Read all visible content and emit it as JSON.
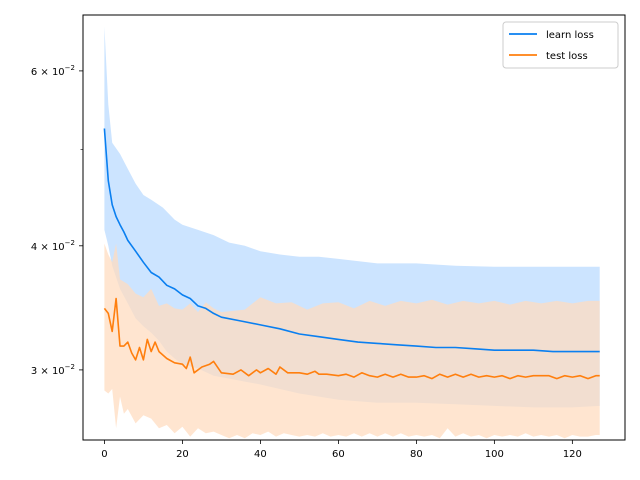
{
  "chart_data": {
    "type": "line",
    "title": "",
    "xlabel": "",
    "ylabel": "",
    "yscale": "log",
    "xlim": [
      -5.5,
      133.5
    ],
    "ylim": [
      0.0255,
      0.0683
    ],
    "x_ticks": [
      0,
      20,
      40,
      60,
      80,
      100,
      120
    ],
    "x_tick_labels": [
      "0",
      "20",
      "40",
      "60",
      "80",
      "100",
      "120"
    ],
    "y_ticks": [
      0.03,
      0.04,
      0.06
    ],
    "y_tick_labels": [
      {
        "mantissa": "3",
        "base": "10",
        "exp": "−2"
      },
      {
        "mantissa": "4",
        "base": "10",
        "exp": "−2"
      },
      {
        "mantissa": "6",
        "base": "10",
        "exp": "−2"
      }
    ],
    "y_minor_ticks": [
      0.05
    ],
    "legend_position": "top-right",
    "grid": false,
    "series": [
      {
        "name": "learn loss",
        "color": "#0a7ff0",
        "band_color": "#cce4ff",
        "mean": [
          [
            0,
            0.0525
          ],
          [
            1,
            0.0465
          ],
          [
            2,
            0.044
          ],
          [
            3,
            0.0428
          ],
          [
            4,
            0.042
          ],
          [
            5,
            0.0413
          ],
          [
            6,
            0.0405
          ],
          [
            8,
            0.0395
          ],
          [
            10,
            0.0385
          ],
          [
            12,
            0.0376
          ],
          [
            14,
            0.0372
          ],
          [
            16,
            0.0365
          ],
          [
            18,
            0.0362
          ],
          [
            20,
            0.0357
          ],
          [
            22,
            0.0354
          ],
          [
            24,
            0.0348
          ],
          [
            26,
            0.0346
          ],
          [
            28,
            0.0342
          ],
          [
            30,
            0.0339
          ],
          [
            35,
            0.0336
          ],
          [
            40,
            0.0333
          ],
          [
            45,
            0.033
          ],
          [
            50,
            0.0326
          ],
          [
            55,
            0.0324
          ],
          [
            60,
            0.0322
          ],
          [
            65,
            0.032
          ],
          [
            70,
            0.0319
          ],
          [
            75,
            0.0318
          ],
          [
            80,
            0.0317
          ],
          [
            85,
            0.0316
          ],
          [
            90,
            0.0316
          ],
          [
            95,
            0.0315
          ],
          [
            100,
            0.0314
          ],
          [
            105,
            0.0314
          ],
          [
            110,
            0.0314
          ],
          [
            115,
            0.0313
          ],
          [
            120,
            0.0313
          ],
          [
            127,
            0.0313
          ]
        ],
        "upper": [
          [
            0,
            0.0665
          ],
          [
            1,
            0.0555
          ],
          [
            2,
            0.0508
          ],
          [
            4,
            0.0495
          ],
          [
            6,
            0.0478
          ],
          [
            8,
            0.0462
          ],
          [
            10,
            0.045
          ],
          [
            12,
            0.0445
          ],
          [
            15,
            0.0437
          ],
          [
            18,
            0.0425
          ],
          [
            20,
            0.042
          ],
          [
            24,
            0.0415
          ],
          [
            28,
            0.041
          ],
          [
            32,
            0.0403
          ],
          [
            36,
            0.04
          ],
          [
            40,
            0.0395
          ],
          [
            45,
            0.0392
          ],
          [
            50,
            0.039
          ],
          [
            55,
            0.039
          ],
          [
            60,
            0.0388
          ],
          [
            70,
            0.0384
          ],
          [
            80,
            0.0384
          ],
          [
            90,
            0.0382
          ],
          [
            100,
            0.0381
          ],
          [
            110,
            0.0381
          ],
          [
            120,
            0.0381
          ],
          [
            127,
            0.0381
          ]
        ],
        "lower": [
          [
            0,
            0.0415
          ],
          [
            1,
            0.04
          ],
          [
            2,
            0.0382
          ],
          [
            4,
            0.0362
          ],
          [
            6,
            0.035
          ],
          [
            8,
            0.0338
          ],
          [
            10,
            0.0332
          ],
          [
            12,
            0.0327
          ],
          [
            14,
            0.0321
          ],
          [
            16,
            0.0313
          ],
          [
            18,
            0.0308
          ],
          [
            20,
            0.0304
          ],
          [
            24,
            0.0301
          ],
          [
            28,
            0.0296
          ],
          [
            32,
            0.0294
          ],
          [
            36,
            0.0292
          ],
          [
            40,
            0.029
          ],
          [
            45,
            0.0287
          ],
          [
            50,
            0.0284
          ],
          [
            55,
            0.0282
          ],
          [
            60,
            0.028
          ],
          [
            70,
            0.0278
          ],
          [
            80,
            0.0278
          ],
          [
            90,
            0.0277
          ],
          [
            100,
            0.0276
          ],
          [
            110,
            0.0275
          ],
          [
            120,
            0.0275
          ],
          [
            127,
            0.0276
          ]
        ]
      },
      {
        "name": "test loss",
        "color": "#ff7f0e",
        "band_color": "#ffdcc0",
        "mean": [
          [
            0,
            0.0346
          ],
          [
            1,
            0.0342
          ],
          [
            2,
            0.0328
          ],
          [
            3,
            0.0354
          ],
          [
            4,
            0.0317
          ],
          [
            5,
            0.0317
          ],
          [
            6,
            0.032
          ],
          [
            7,
            0.0312
          ],
          [
            8,
            0.0307
          ],
          [
            9,
            0.0316
          ],
          [
            10,
            0.0307
          ],
          [
            11,
            0.0322
          ],
          [
            12,
            0.0313
          ],
          [
            13,
            0.032
          ],
          [
            14,
            0.0313
          ],
          [
            16,
            0.0308
          ],
          [
            18,
            0.0305
          ],
          [
            20,
            0.0304
          ],
          [
            21,
            0.0301
          ],
          [
            22,
            0.0309
          ],
          [
            23,
            0.0298
          ],
          [
            25,
            0.0302
          ],
          [
            27,
            0.0304
          ],
          [
            28,
            0.0306
          ],
          [
            30,
            0.0298
          ],
          [
            33,
            0.0297
          ],
          [
            35,
            0.03
          ],
          [
            37,
            0.0296
          ],
          [
            39,
            0.03
          ],
          [
            40,
            0.0298
          ],
          [
            42,
            0.0301
          ],
          [
            44,
            0.0297
          ],
          [
            45,
            0.0302
          ],
          [
            47,
            0.0298
          ],
          [
            50,
            0.0298
          ],
          [
            52,
            0.0297
          ],
          [
            54,
            0.0299
          ],
          [
            55,
            0.0297
          ],
          [
            57,
            0.0297
          ],
          [
            60,
            0.0296
          ],
          [
            62,
            0.0297
          ],
          [
            64,
            0.0295
          ],
          [
            66,
            0.0298
          ],
          [
            68,
            0.0296
          ],
          [
            70,
            0.0295
          ],
          [
            72,
            0.0297
          ],
          [
            74,
            0.0295
          ],
          [
            76,
            0.0297
          ],
          [
            78,
            0.0295
          ],
          [
            80,
            0.0295
          ],
          [
            82,
            0.0296
          ],
          [
            84,
            0.0294
          ],
          [
            86,
            0.0297
          ],
          [
            88,
            0.0295
          ],
          [
            90,
            0.0297
          ],
          [
            92,
            0.0295
          ],
          [
            94,
            0.0297
          ],
          [
            96,
            0.0295
          ],
          [
            98,
            0.0296
          ],
          [
            100,
            0.0295
          ],
          [
            102,
            0.0296
          ],
          [
            104,
            0.0294
          ],
          [
            106,
            0.0296
          ],
          [
            108,
            0.0295
          ],
          [
            110,
            0.0296
          ],
          [
            112,
            0.0296
          ],
          [
            114,
            0.0296
          ],
          [
            116,
            0.0294
          ],
          [
            118,
            0.0296
          ],
          [
            120,
            0.0295
          ],
          [
            122,
            0.0296
          ],
          [
            124,
            0.0294
          ],
          [
            126,
            0.0296
          ],
          [
            127,
            0.0296
          ]
        ],
        "upper": [
          [
            0,
            0.0402
          ],
          [
            1,
            0.0392
          ],
          [
            2,
            0.0385
          ],
          [
            3,
            0.0402
          ],
          [
            4,
            0.037
          ],
          [
            6,
            0.0366
          ],
          [
            8,
            0.0358
          ],
          [
            10,
            0.0355
          ],
          [
            12,
            0.0362
          ],
          [
            14,
            0.0348
          ],
          [
            16,
            0.035
          ],
          [
            18,
            0.0346
          ],
          [
            20,
            0.0345
          ],
          [
            22,
            0.035
          ],
          [
            24,
            0.0343
          ],
          [
            26,
            0.0351
          ],
          [
            28,
            0.0346
          ],
          [
            30,
            0.0343
          ],
          [
            33,
            0.0344
          ],
          [
            36,
            0.0345
          ],
          [
            40,
            0.0355
          ],
          [
            44,
            0.035
          ],
          [
            48,
            0.0351
          ],
          [
            52,
            0.0345
          ],
          [
            56,
            0.035
          ],
          [
            60,
            0.0351
          ],
          [
            64,
            0.0346
          ],
          [
            68,
            0.0352
          ],
          [
            72,
            0.0348
          ],
          [
            76,
            0.0352
          ],
          [
            80,
            0.035
          ],
          [
            84,
            0.0353
          ],
          [
            88,
            0.0349
          ],
          [
            92,
            0.0352
          ],
          [
            96,
            0.035
          ],
          [
            100,
            0.0352
          ],
          [
            104,
            0.0349
          ],
          [
            108,
            0.0352
          ],
          [
            112,
            0.035
          ],
          [
            116,
            0.0352
          ],
          [
            120,
            0.035
          ],
          [
            124,
            0.0352
          ],
          [
            127,
            0.0352
          ]
        ],
        "lower": [
          [
            0,
            0.0286
          ],
          [
            1,
            0.0284
          ],
          [
            2,
            0.0287
          ],
          [
            3,
            0.0262
          ],
          [
            4,
            0.0282
          ],
          [
            5,
            0.0271
          ],
          [
            6,
            0.0274
          ],
          [
            8,
            0.0265
          ],
          [
            10,
            0.027
          ],
          [
            12,
            0.0268
          ],
          [
            14,
            0.0262
          ],
          [
            16,
            0.0264
          ],
          [
            18,
            0.0259
          ],
          [
            20,
            0.0263
          ],
          [
            22,
            0.0257
          ],
          [
            24,
            0.0262
          ],
          [
            26,
            0.0259
          ],
          [
            28,
            0.026
          ],
          [
            30,
            0.0258
          ],
          [
            32,
            0.0256
          ],
          [
            34,
            0.0258
          ],
          [
            36,
            0.0256
          ],
          [
            38,
            0.0259
          ],
          [
            40,
            0.0258
          ],
          [
            42,
            0.026
          ],
          [
            44,
            0.0257
          ],
          [
            46,
            0.0259
          ],
          [
            48,
            0.0258
          ],
          [
            50,
            0.0257
          ],
          [
            52,
            0.0258
          ],
          [
            54,
            0.0257
          ],
          [
            56,
            0.0259
          ],
          [
            58,
            0.0257
          ],
          [
            60,
            0.0258
          ],
          [
            62,
            0.0257
          ],
          [
            64,
            0.0259
          ],
          [
            66,
            0.0257
          ],
          [
            68,
            0.0259
          ],
          [
            70,
            0.0257
          ],
          [
            72,
            0.0259
          ],
          [
            74,
            0.0257
          ],
          [
            76,
            0.0259
          ],
          [
            78,
            0.0257
          ],
          [
            80,
            0.0258
          ],
          [
            82,
            0.0257
          ],
          [
            84,
            0.0258
          ],
          [
            86,
            0.0256
          ],
          [
            88,
            0.0262
          ],
          [
            90,
            0.0257
          ],
          [
            92,
            0.0259
          ],
          [
            94,
            0.0257
          ],
          [
            96,
            0.0258
          ],
          [
            98,
            0.0256
          ],
          [
            100,
            0.0258
          ],
          [
            102,
            0.0257
          ],
          [
            104,
            0.0258
          ],
          [
            106,
            0.0257
          ],
          [
            108,
            0.0259
          ],
          [
            110,
            0.0257
          ],
          [
            112,
            0.0258
          ],
          [
            114,
            0.0257
          ],
          [
            116,
            0.0258
          ],
          [
            118,
            0.0256
          ],
          [
            120,
            0.0258
          ],
          [
            122,
            0.0257
          ],
          [
            124,
            0.0257
          ],
          [
            126,
            0.0258
          ],
          [
            127,
            0.0258
          ]
        ]
      }
    ]
  }
}
